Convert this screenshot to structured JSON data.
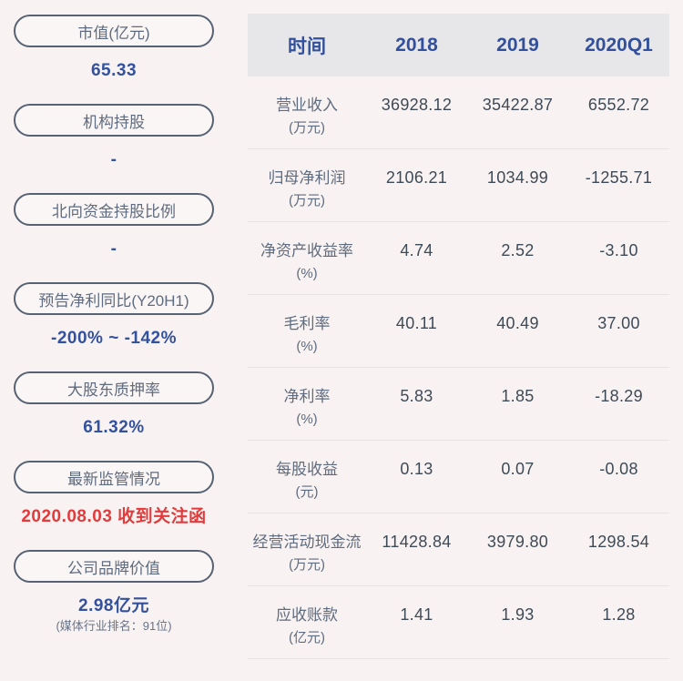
{
  "colors": {
    "background": "#f8f3f2",
    "pill_border": "#576273",
    "pill_text": "#5f6b7e",
    "value_blue": "#33519e",
    "value_red": "#e23b3c",
    "header_bg": "#e7e6e8",
    "header_text": "#32509b",
    "row_label": "#5f6b7e",
    "row_value": "#3f4a57",
    "divider": "#e9e4e3",
    "subtitle_gray": "#6a7387"
  },
  "sidebar": {
    "items": [
      {
        "label": "市值(亿元)",
        "value": "65.33",
        "color": "blue"
      },
      {
        "label": "机构持股",
        "value": "-",
        "color": "blue"
      },
      {
        "label": "北向资金持股比例",
        "value": "-",
        "color": "blue"
      },
      {
        "label": "预告净利同比(Y20H1)",
        "value": "-200% ~ -142%",
        "color": "blue"
      },
      {
        "label": "大股东质押率",
        "value": "61.32%",
        "color": "blue"
      },
      {
        "label": "最新监管情况",
        "value": "2020.08.03 收到关注函",
        "color": "red"
      },
      {
        "label": "公司品牌价值",
        "value": "2.98亿元",
        "color": "blue",
        "subtitle": "(媒体行业排名：91位)"
      }
    ]
  },
  "table": {
    "header": [
      "时间",
      "2018",
      "2019",
      "2020Q1"
    ],
    "rows": [
      {
        "label": "营业收入",
        "unit": "(万元)",
        "values": [
          "36928.12",
          "35422.87",
          "6552.72"
        ]
      },
      {
        "label": "归母净利润",
        "unit": "(万元)",
        "values": [
          "2106.21",
          "1034.99",
          "-1255.71"
        ]
      },
      {
        "label": "净资产收益率",
        "unit": "(%)",
        "values": [
          "4.74",
          "2.52",
          "-3.10"
        ]
      },
      {
        "label": "毛利率",
        "unit": "(%)",
        "values": [
          "40.11",
          "40.49",
          "37.00"
        ]
      },
      {
        "label": "净利率",
        "unit": "(%)",
        "values": [
          "5.83",
          "1.85",
          "-18.29"
        ]
      },
      {
        "label": "每股收益",
        "unit": "(元)",
        "values": [
          "0.13",
          "0.07",
          "-0.08"
        ]
      },
      {
        "label": "经营活动现金流",
        "unit": "(万元)",
        "values": [
          "11428.84",
          "3979.80",
          "1298.54"
        ]
      },
      {
        "label": "应收账款",
        "unit": "(亿元)",
        "values": [
          "1.41",
          "1.93",
          "1.28"
        ]
      }
    ]
  },
  "chart_data": {
    "type": "table",
    "columns": [
      "时间",
      "2018",
      "2019",
      "2020Q1"
    ],
    "rows": [
      [
        "营业收入(万元)",
        36928.12,
        35422.87,
        6552.72
      ],
      [
        "归母净利润(万元)",
        2106.21,
        1034.99,
        -1255.71
      ],
      [
        "净资产收益率(%)",
        4.74,
        2.52,
        -3.1
      ],
      [
        "毛利率(%)",
        40.11,
        40.49,
        37.0
      ],
      [
        "净利率(%)",
        5.83,
        1.85,
        -18.29
      ],
      [
        "每股收益(元)",
        0.13,
        0.07,
        -0.08
      ],
      [
        "经营活动现金流(万元)",
        11428.84,
        3979.8,
        1298.54
      ],
      [
        "应收账款(亿元)",
        1.41,
        1.93,
        1.28
      ]
    ],
    "side_stats": [
      {
        "name": "市值(亿元)",
        "value": "65.33"
      },
      {
        "name": "机构持股",
        "value": "-"
      },
      {
        "name": "北向资金持股比例",
        "value": "-"
      },
      {
        "name": "预告净利同比(Y20H1)",
        "value": "-200% ~ -142%"
      },
      {
        "name": "大股东质押率",
        "value": "61.32%"
      },
      {
        "name": "最新监管情况",
        "value": "2020.08.03 收到关注函"
      },
      {
        "name": "公司品牌价值",
        "value": "2.98亿元",
        "note": "(媒体行业排名：91位)"
      }
    ]
  }
}
